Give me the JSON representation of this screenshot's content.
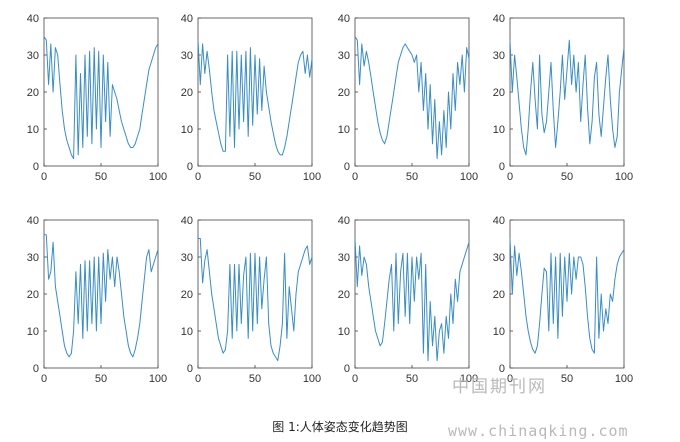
{
  "figure": {
    "caption": "图 1:人体姿态变化趋势图",
    "watermark_cn": "中国期刊网",
    "watermark_url": "www.chinaqking.com"
  },
  "style": {
    "line_color": "#3a8dc4",
    "axis_color": "#444444"
  },
  "chart_data": [
    {
      "type": "line",
      "xlim": [
        0,
        100
      ],
      "ylim": [
        0,
        40
      ],
      "xticks": [
        0,
        50,
        100
      ],
      "yticks": [
        0,
        10,
        20,
        30,
        40
      ],
      "x": [
        0,
        2,
        4,
        6,
        8,
        10,
        12,
        14,
        16,
        18,
        20,
        22,
        24,
        26,
        28,
        30,
        32,
        34,
        36,
        38,
        40,
        42,
        44,
        46,
        48,
        50,
        52,
        54,
        56,
        58,
        60,
        62,
        64,
        66,
        68,
        70,
        72,
        74,
        76,
        78,
        80,
        82,
        84,
        86,
        88,
        90,
        92,
        94,
        96,
        98,
        100
      ],
      "y": [
        35,
        34,
        22,
        33,
        20,
        32,
        30,
        22,
        15,
        10,
        7,
        5,
        3,
        2,
        30,
        3,
        25,
        5,
        30,
        8,
        31,
        6,
        32,
        10,
        31,
        5,
        30,
        12,
        28,
        8,
        22,
        20,
        18,
        15,
        12,
        10,
        8,
        6,
        5,
        5,
        6,
        8,
        10,
        14,
        18,
        22,
        26,
        28,
        30,
        32,
        33
      ]
    },
    {
      "type": "line",
      "xlim": [
        0,
        100
      ],
      "ylim": [
        0,
        40
      ],
      "xticks": [
        0,
        50,
        100
      ],
      "yticks": [
        0,
        10,
        20,
        30,
        40
      ],
      "x": [
        0,
        2,
        4,
        6,
        8,
        10,
        12,
        14,
        16,
        18,
        20,
        22,
        24,
        26,
        28,
        30,
        32,
        34,
        36,
        38,
        40,
        42,
        44,
        46,
        48,
        50,
        52,
        54,
        56,
        58,
        60,
        62,
        64,
        66,
        68,
        70,
        72,
        74,
        76,
        78,
        80,
        82,
        84,
        86,
        88,
        90,
        92,
        94,
        96,
        98,
        100
      ],
      "y": [
        34,
        22,
        33,
        25,
        31,
        26,
        20,
        15,
        12,
        9,
        6,
        4,
        4,
        30,
        8,
        31,
        5,
        31,
        10,
        30,
        12,
        31,
        8,
        32,
        11,
        30,
        14,
        29,
        15,
        27,
        20,
        16,
        12,
        9,
        6,
        4,
        3,
        3,
        5,
        8,
        12,
        16,
        20,
        24,
        28,
        30,
        31,
        25,
        30,
        24,
        29
      ]
    },
    {
      "type": "line",
      "xlim": [
        0,
        100
      ],
      "ylim": [
        0,
        40
      ],
      "xticks": [
        0,
        50,
        100
      ],
      "yticks": [
        0,
        10,
        20,
        30,
        40
      ],
      "x": [
        0,
        2,
        4,
        6,
        8,
        10,
        12,
        14,
        16,
        18,
        20,
        22,
        24,
        26,
        28,
        30,
        32,
        34,
        36,
        38,
        40,
        42,
        44,
        46,
        48,
        50,
        52,
        54,
        56,
        58,
        60,
        62,
        64,
        66,
        68,
        70,
        72,
        74,
        76,
        78,
        80,
        82,
        84,
        86,
        88,
        90,
        92,
        94,
        96,
        98,
        100
      ],
      "y": [
        35,
        34,
        22,
        33,
        27,
        31,
        28,
        24,
        20,
        16,
        12,
        9,
        7,
        6,
        8,
        12,
        16,
        20,
        24,
        28,
        30,
        32,
        33,
        32,
        31,
        30,
        28,
        30,
        20,
        28,
        15,
        25,
        10,
        22,
        6,
        18,
        2,
        12,
        3,
        15,
        5,
        20,
        10,
        25,
        15,
        28,
        22,
        30,
        20,
        32,
        29
      ]
    },
    {
      "type": "line",
      "xlim": [
        0,
        100
      ],
      "ylim": [
        0,
        40
      ],
      "xticks": [
        0,
        50,
        100
      ],
      "yticks": [
        0,
        10,
        20,
        30,
        40
      ],
      "x": [
        0,
        2,
        4,
        6,
        8,
        10,
        12,
        14,
        16,
        18,
        20,
        22,
        24,
        26,
        28,
        30,
        32,
        34,
        36,
        38,
        40,
        42,
        44,
        46,
        48,
        50,
        52,
        54,
        56,
        58,
        60,
        62,
        64,
        66,
        68,
        70,
        72,
        74,
        76,
        78,
        80,
        82,
        84,
        86,
        88,
        90,
        92,
        94,
        96,
        98,
        100
      ],
      "y": [
        34,
        20,
        30,
        24,
        17,
        10,
        5,
        3,
        10,
        20,
        28,
        18,
        10,
        30,
        14,
        9,
        12,
        20,
        28,
        15,
        5,
        12,
        20,
        30,
        18,
        26,
        34,
        22,
        30,
        20,
        28,
        12,
        22,
        30,
        16,
        6,
        12,
        24,
        28,
        14,
        8,
        16,
        24,
        30,
        18,
        10,
        5,
        8,
        20,
        26,
        32
      ]
    },
    {
      "type": "line",
      "xlim": [
        0,
        100
      ],
      "ylim": [
        0,
        40
      ],
      "xticks": [
        0,
        50,
        100
      ],
      "yticks": [
        0,
        10,
        20,
        30,
        40
      ],
      "x": [
        0,
        2,
        4,
        6,
        8,
        10,
        12,
        14,
        16,
        18,
        20,
        22,
        24,
        26,
        28,
        30,
        32,
        34,
        36,
        38,
        40,
        42,
        44,
        46,
        48,
        50,
        52,
        54,
        56,
        58,
        60,
        62,
        64,
        66,
        68,
        70,
        72,
        74,
        76,
        78,
        80,
        82,
        84,
        86,
        88,
        90,
        92,
        94,
        96,
        98,
        100
      ],
      "y": [
        36,
        36,
        24,
        26,
        34,
        22,
        18,
        14,
        10,
        6,
        4,
        3,
        4,
        10,
        26,
        12,
        28,
        8,
        29,
        10,
        29,
        12,
        30,
        10,
        30,
        12,
        31,
        18,
        32,
        24,
        30,
        22,
        30,
        26,
        20,
        14,
        10,
        6,
        4,
        3,
        5,
        8,
        12,
        18,
        24,
        30,
        32,
        26,
        28,
        30,
        32
      ]
    },
    {
      "type": "line",
      "xlim": [
        0,
        100
      ],
      "ylim": [
        0,
        40
      ],
      "xticks": [
        0,
        50,
        100
      ],
      "yticks": [
        0,
        10,
        20,
        30,
        40
      ],
      "x": [
        0,
        2,
        4,
        6,
        8,
        10,
        12,
        14,
        16,
        18,
        20,
        22,
        24,
        26,
        28,
        30,
        32,
        34,
        36,
        38,
        40,
        42,
        44,
        46,
        48,
        50,
        52,
        54,
        56,
        58,
        60,
        62,
        64,
        66,
        68,
        70,
        72,
        74,
        76,
        78,
        80,
        82,
        84,
        86,
        88,
        90,
        92,
        94,
        96,
        98,
        100
      ],
      "y": [
        35,
        35,
        23,
        29,
        32,
        26,
        20,
        16,
        12,
        8,
        6,
        4,
        5,
        10,
        28,
        8,
        28,
        10,
        28,
        12,
        25,
        30,
        8,
        31,
        10,
        31,
        12,
        30,
        16,
        24,
        30,
        12,
        6,
        4,
        3,
        2,
        6,
        12,
        31,
        8,
        22,
        16,
        10,
        20,
        26,
        28,
        30,
        32,
        33,
        28,
        30
      ]
    },
    {
      "type": "line",
      "xlim": [
        0,
        100
      ],
      "ylim": [
        0,
        40
      ],
      "xticks": [
        0,
        50,
        100
      ],
      "yticks": [
        0,
        10,
        20,
        30,
        40
      ],
      "x": [
        0,
        2,
        4,
        6,
        8,
        10,
        12,
        14,
        16,
        18,
        20,
        22,
        24,
        26,
        28,
        30,
        32,
        34,
        36,
        38,
        40,
        42,
        44,
        46,
        48,
        50,
        52,
        54,
        56,
        58,
        60,
        62,
        64,
        66,
        68,
        70,
        72,
        74,
        76,
        78,
        80,
        82,
        84,
        86,
        88,
        90,
        92,
        94,
        96,
        98,
        100
      ],
      "y": [
        35,
        22,
        33,
        25,
        30,
        28,
        22,
        18,
        14,
        10,
        8,
        6,
        7,
        12,
        18,
        24,
        28,
        10,
        31,
        12,
        26,
        31,
        14,
        31,
        12,
        30,
        18,
        30,
        24,
        31,
        4,
        28,
        2,
        18,
        6,
        14,
        2,
        10,
        12,
        4,
        14,
        8,
        20,
        12,
        24,
        18,
        26,
        28,
        30,
        32,
        34
      ]
    },
    {
      "type": "line",
      "xlim": [
        0,
        100
      ],
      "ylim": [
        0,
        40
      ],
      "xticks": [
        0,
        50,
        100
      ],
      "yticks": [
        0,
        10,
        20,
        30,
        40
      ],
      "x": [
        0,
        2,
        4,
        6,
        8,
        10,
        12,
        14,
        16,
        18,
        20,
        22,
        24,
        26,
        28,
        30,
        32,
        34,
        36,
        38,
        40,
        42,
        44,
        46,
        48,
        50,
        52,
        54,
        56,
        58,
        60,
        62,
        64,
        66,
        68,
        70,
        72,
        74,
        76,
        78,
        80,
        82,
        84,
        86,
        88,
        90,
        92,
        94,
        96,
        98,
        100
      ],
      "y": [
        35,
        20,
        33,
        25,
        31,
        26,
        20,
        14,
        10,
        7,
        5,
        4,
        6,
        12,
        20,
        27,
        26,
        10,
        31,
        12,
        30,
        8,
        31,
        14,
        30,
        18,
        31,
        20,
        30,
        24,
        30,
        30,
        28,
        22,
        14,
        8,
        5,
        4,
        30,
        8,
        20,
        10,
        16,
        12,
        20,
        18,
        24,
        28,
        30,
        31,
        32
      ]
    }
  ]
}
